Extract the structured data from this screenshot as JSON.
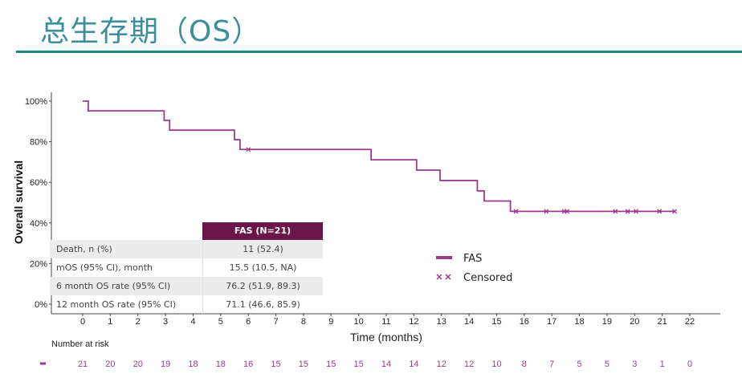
{
  "title": "总生存期（OS）",
  "chart_data": {
    "type": "line",
    "subtype": "kaplan-meier step",
    "xlabel": "Time (months)",
    "ylabel": "Overall survival",
    "xlim": [
      0,
      22
    ],
    "ylim": [
      0,
      100
    ],
    "x_ticks": [
      0,
      1,
      2,
      3,
      4,
      5,
      6,
      7,
      8,
      9,
      10,
      11,
      12,
      13,
      14,
      15,
      16,
      17,
      18,
      19,
      20,
      21,
      22
    ],
    "y_ticks": [
      "0%",
      "20%",
      "40%",
      "60%",
      "80%",
      "100%"
    ],
    "grid": false,
    "color": "#9b3a8e",
    "series": [
      {
        "name": "FAS",
        "steps": [
          [
            0,
            100
          ],
          [
            0.2,
            95.2
          ],
          [
            2.95,
            90.5
          ],
          [
            3.15,
            85.7
          ],
          [
            5.5,
            81.0
          ],
          [
            5.7,
            76.2
          ],
          [
            10.45,
            71.1
          ],
          [
            12.1,
            66.0
          ],
          [
            12.95,
            60.9
          ],
          [
            14.3,
            55.8
          ],
          [
            14.55,
            50.8
          ],
          [
            15.5,
            45.7
          ],
          [
            21.45,
            45.7
          ]
        ]
      }
    ],
    "censored": [
      6.0,
      15.7,
      16.8,
      17.45,
      17.55,
      19.3,
      19.75,
      20.05,
      20.9,
      21.45
    ],
    "legend": {
      "placement": "center-right",
      "items": [
        "FAS",
        "Censored"
      ]
    },
    "risk_table": {
      "label": "Number at risk",
      "values": [
        21,
        20,
        20,
        19,
        18,
        18,
        16,
        15,
        15,
        15,
        15,
        14,
        14,
        12,
        12,
        10,
        8,
        7,
        5,
        5,
        3,
        1,
        0
      ]
    },
    "summary_table": {
      "header": "FAS (N=21)",
      "rows": [
        {
          "label": "Death, n (%)",
          "value": "11 (52.4)"
        },
        {
          "label": "mOS (95% CI), month",
          "value": "15.5 (10.5, NA)"
        },
        {
          "label": "6 month OS rate (95% CI)",
          "value": "76.2 (51.9, 89.3)"
        },
        {
          "label": "12 month OS rate (95% CI)",
          "value": "71.1 (46.6, 85.9)"
        }
      ]
    }
  }
}
